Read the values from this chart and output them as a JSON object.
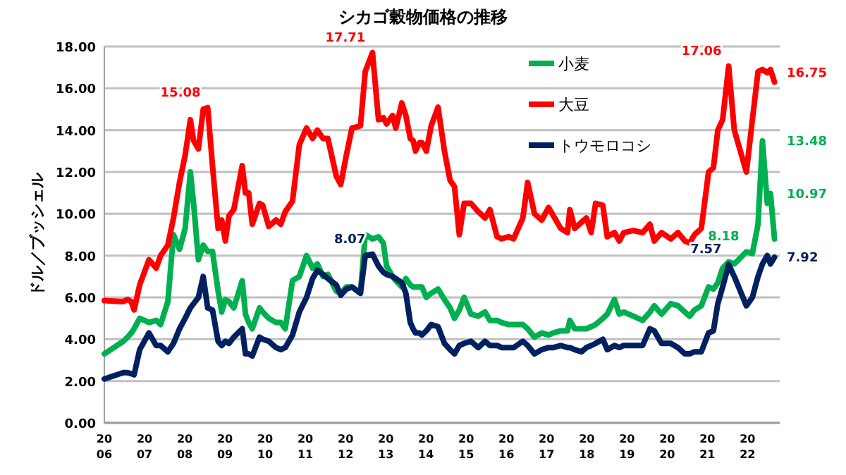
{
  "chart_data": {
    "type": "line",
    "title": "シカゴ穀物価格の推移",
    "ylabel": "ドル／ブッシェル",
    "x": [
      2006.0,
      2006.47,
      2006.58,
      2006.67,
      2006.74,
      2006.88,
      2007.11,
      2007.29,
      2007.4,
      2007.58,
      2007.72,
      2007.87,
      2008.01,
      2008.14,
      2008.22,
      2008.34,
      2008.46,
      2008.57,
      2008.69,
      2008.83,
      2008.92,
      2009.01,
      2009.1,
      2009.22,
      2009.43,
      2009.51,
      2009.59,
      2009.68,
      2009.86,
      2009.94,
      2010.09,
      2010.27,
      2010.39,
      2010.5,
      2010.68,
      2010.85,
      2011.03,
      2011.18,
      2011.3,
      2011.44,
      2011.56,
      2011.77,
      2011.88,
      2012.02,
      2012.16,
      2012.37,
      2012.49,
      2012.67,
      2012.82,
      2012.94,
      2013.02,
      2013.17,
      2013.25,
      2013.4,
      2013.5,
      2013.61,
      2013.68,
      2013.74,
      2013.84,
      2013.9,
      2014.01,
      2014.13,
      2014.3,
      2014.46,
      2014.6,
      2014.71,
      2014.83,
      2014.95,
      2015.12,
      2015.3,
      2015.47,
      2015.59,
      2015.77,
      2015.88,
      2016.06,
      2016.18,
      2016.41,
      2016.53,
      2016.7,
      2016.88,
      2017.05,
      2017.17,
      2017.35,
      2017.52,
      2017.58,
      2017.7,
      2017.87,
      2017.99,
      2018.11,
      2018.22,
      2018.4,
      2018.51,
      2018.69,
      2018.81,
      2018.92,
      2019.16,
      2019.39,
      2019.57,
      2019.68,
      2019.86,
      2020.09,
      2020.27,
      2020.44,
      2020.56,
      2020.68,
      2020.85,
      2021.03,
      2021.15,
      2021.26,
      2021.38,
      2021.53,
      2021.67,
      2021.97,
      2022.12,
      2022.26,
      2022.37,
      2022.49,
      2022.57,
      2022.67
    ],
    "series": [
      {
        "name": "小麦",
        "color": "#00b050",
        "values": [
          3.3,
          3.9,
          4.1,
          4.3,
          4.5,
          5.0,
          4.8,
          4.9,
          4.7,
          5.8,
          9.0,
          8.3,
          9.3,
          12.0,
          10.5,
          7.8,
          8.5,
          8.2,
          8.2,
          6.3,
          5.3,
          5.9,
          5.8,
          5.5,
          6.8,
          5.2,
          4.8,
          4.5,
          5.5,
          5.3,
          5.0,
          4.8,
          4.8,
          4.5,
          6.8,
          7.0,
          8.0,
          7.4,
          7.6,
          7.0,
          7.1,
          6.3,
          6.2,
          6.5,
          6.5,
          6.2,
          9.0,
          8.8,
          8.9,
          8.6,
          7.5,
          7.0,
          6.8,
          6.5,
          6.9,
          6.6,
          6.5,
          6.5,
          6.5,
          6.5,
          6.0,
          6.2,
          6.4,
          5.9,
          5.5,
          5.0,
          5.4,
          6.0,
          5.2,
          5.1,
          5.3,
          4.9,
          4.9,
          4.8,
          4.7,
          4.7,
          4.7,
          4.5,
          4.1,
          4.3,
          4.2,
          4.3,
          4.4,
          4.4,
          4.9,
          4.5,
          4.5,
          4.5,
          4.6,
          4.7,
          5.0,
          5.2,
          5.9,
          5.2,
          5.3,
          5.1,
          4.9,
          5.3,
          5.6,
          5.2,
          5.7,
          5.6,
          5.3,
          5.1,
          5.4,
          5.6,
          6.5,
          6.4,
          6.7,
          7.4,
          7.7,
          7.6,
          8.18,
          8.1,
          9.5,
          13.48,
          10.5,
          10.97,
          8.8
        ]
      },
      {
        "name": "大豆",
        "color": "#ff0000",
        "values": [
          5.85,
          5.8,
          5.9,
          5.8,
          5.4,
          6.6,
          7.8,
          7.4,
          8.0,
          8.5,
          9.8,
          11.5,
          12.8,
          14.5,
          13.5,
          13.1,
          15.0,
          15.08,
          12.3,
          9.3,
          9.7,
          8.7,
          9.9,
          10.2,
          12.3,
          11.0,
          11.0,
          9.5,
          10.5,
          10.4,
          9.4,
          9.7,
          9.5,
          10.1,
          10.6,
          13.3,
          14.1,
          13.6,
          14.0,
          13.6,
          13.6,
          11.8,
          11.4,
          12.8,
          14.1,
          14.2,
          16.8,
          17.71,
          14.5,
          14.6,
          14.3,
          14.7,
          14.1,
          15.3,
          14.7,
          13.6,
          13.5,
          13.0,
          13.4,
          13.4,
          13.0,
          14.2,
          15.1,
          13.0,
          11.6,
          11.3,
          9.0,
          10.5,
          10.5,
          10.1,
          9.8,
          10.2,
          8.9,
          8.8,
          8.9,
          8.8,
          9.8,
          11.5,
          10.0,
          9.7,
          10.3,
          9.9,
          9.3,
          9.1,
          10.2,
          9.3,
          9.6,
          9.8,
          9.1,
          10.5,
          10.4,
          8.9,
          9.1,
          8.7,
          9.1,
          9.2,
          9.1,
          9.5,
          8.7,
          9.1,
          8.8,
          9.1,
          8.7,
          8.6,
          9.0,
          9.3,
          12.0,
          12.2,
          14.0,
          14.5,
          17.06,
          14.0,
          12.0,
          14.5,
          16.8,
          16.9,
          16.75,
          16.9,
          16.3
        ]
      },
      {
        "name": "トウモロコシ",
        "color": "#002060",
        "values": [
          2.1,
          2.4,
          2.4,
          2.35,
          2.3,
          3.5,
          4.3,
          3.7,
          3.7,
          3.4,
          3.8,
          4.5,
          5.0,
          5.5,
          5.7,
          6.0,
          7.0,
          5.5,
          5.4,
          3.9,
          3.7,
          3.9,
          3.8,
          4.1,
          4.5,
          3.3,
          3.3,
          3.2,
          4.1,
          4.0,
          3.9,
          3.6,
          3.5,
          3.6,
          4.2,
          5.3,
          6.0,
          6.9,
          7.3,
          7.1,
          6.9,
          6.6,
          6.1,
          6.4,
          6.5,
          6.2,
          8.0,
          8.07,
          7.5,
          7.2,
          7.1,
          7.0,
          6.9,
          6.7,
          6.2,
          4.8,
          4.5,
          4.3,
          4.3,
          4.2,
          4.4,
          4.7,
          4.6,
          3.8,
          3.5,
          3.3,
          3.7,
          3.8,
          3.9,
          3.6,
          3.9,
          3.7,
          3.7,
          3.6,
          3.6,
          3.6,
          3.9,
          3.7,
          3.3,
          3.5,
          3.6,
          3.6,
          3.7,
          3.6,
          3.6,
          3.5,
          3.4,
          3.6,
          3.7,
          3.8,
          4.0,
          3.5,
          3.7,
          3.6,
          3.7,
          3.7,
          3.7,
          4.5,
          4.4,
          3.8,
          3.8,
          3.6,
          3.3,
          3.3,
          3.4,
          3.4,
          4.3,
          4.4,
          5.7,
          6.5,
          7.57,
          7.0,
          5.6,
          6.0,
          7.0,
          7.6,
          8.0,
          7.6,
          7.92
        ]
      }
    ],
    "annotations": [
      {
        "text": "15.08",
        "x": 2008.57,
        "y": 15.08
      },
      {
        "text": "17.71",
        "x": 2012.67,
        "y": 17.71
      },
      {
        "text": "8.07",
        "x": 2012.67,
        "y": 8.07
      },
      {
        "text": "17.06",
        "x": 2021.53,
        "y": 17.06
      },
      {
        "text": "16.75",
        "x": 2022.49,
        "y": 16.75
      },
      {
        "text": "13.48",
        "x": 2022.37,
        "y": 13.48
      },
      {
        "text": "10.97",
        "x": 2022.57,
        "y": 10.97
      },
      {
        "text": "8.18",
        "x": 2021.97,
        "y": 8.18
      },
      {
        "text": "7.57",
        "x": 2021.53,
        "y": 7.57
      },
      {
        "text": "7.92",
        "x": 2022.67,
        "y": 7.92
      }
    ],
    "xlim": [
      2006,
      2022.8
    ],
    "xticks": [
      2006,
      2007,
      2008,
      2009,
      2010,
      2011,
      2012,
      2013,
      2014,
      2015,
      2016,
      2017,
      2018,
      2019,
      2020,
      2021,
      2022
    ],
    "ylim": [
      0,
      18
    ],
    "yticks": [
      {
        "value": 0,
        "label": "0.00"
      },
      {
        "value": 2,
        "label": "2.00"
      },
      {
        "value": 4,
        "label": "4.00"
      },
      {
        "value": 6,
        "label": "6.00"
      },
      {
        "value": 8,
        "label": "8.00"
      },
      {
        "value": 10,
        "label": "10.00"
      },
      {
        "value": 12,
        "label": "12.00"
      },
      {
        "value": 14,
        "label": "14.00"
      },
      {
        "value": 16,
        "label": "16.00"
      },
      {
        "value": 18,
        "label": "18.00"
      }
    ],
    "grid": "y",
    "legend": "top right"
  }
}
